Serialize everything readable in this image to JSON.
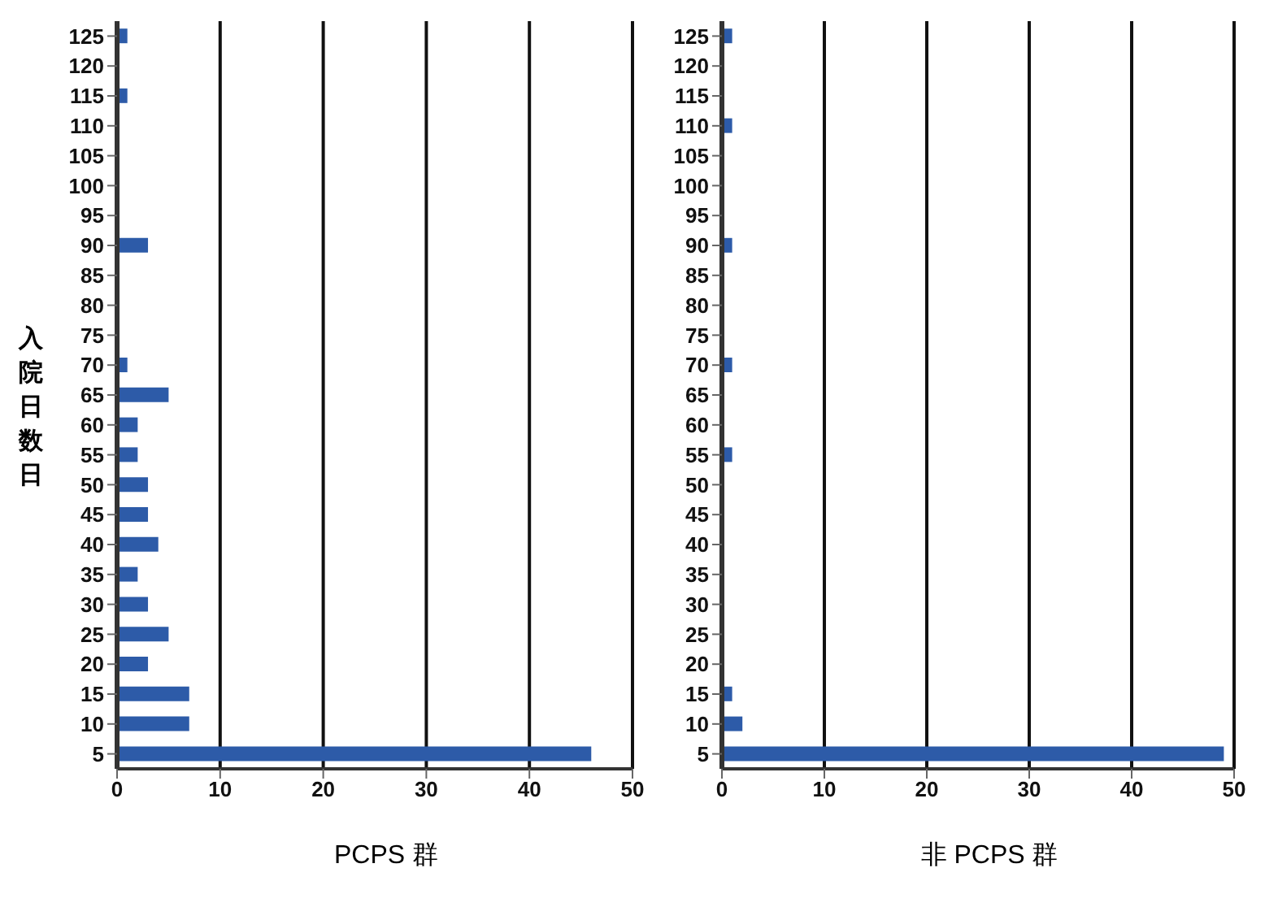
{
  "chart_data": [
    {
      "type": "bar",
      "orientation": "horizontal",
      "xlabel": "PCPS 群",
      "ylabel": "入院日数日",
      "categories": [
        "125",
        "120",
        "115",
        "110",
        "105",
        "100",
        "95",
        "90",
        "85",
        "80",
        "75",
        "70",
        "65",
        "60",
        "55",
        "50",
        "45",
        "40",
        "35",
        "30",
        "25",
        "20",
        "15",
        "10",
        "5"
      ],
      "values": [
        1,
        0,
        1,
        0,
        0,
        0,
        0,
        3,
        0,
        0,
        0,
        1,
        5,
        2,
        2,
        3,
        3,
        4,
        2,
        3,
        5,
        3,
        7,
        7,
        46
      ],
      "color": "#2d5ba8",
      "xlim": [
        0,
        50
      ],
      "xticks": [
        0,
        10,
        20,
        30,
        40,
        50
      ],
      "grid": "x",
      "legend": false
    },
    {
      "type": "bar",
      "orientation": "horizontal",
      "xlabel": "非 PCPS 群",
      "categories": [
        "125",
        "120",
        "115",
        "110",
        "105",
        "100",
        "95",
        "90",
        "85",
        "80",
        "75",
        "70",
        "65",
        "60",
        "55",
        "50",
        "45",
        "40",
        "35",
        "30",
        "25",
        "20",
        "15",
        "10",
        "5"
      ],
      "values": [
        1,
        0,
        0,
        1,
        0,
        0,
        0,
        1,
        0,
        0,
        0,
        1,
        0,
        0,
        1,
        0,
        0,
        0,
        0,
        0,
        0,
        0,
        1,
        2,
        49
      ],
      "color": "#2d5ba8",
      "xlim": [
        0,
        50
      ],
      "xticks": [
        0,
        10,
        20,
        30,
        40,
        50
      ],
      "grid": "x",
      "legend": false
    }
  ]
}
